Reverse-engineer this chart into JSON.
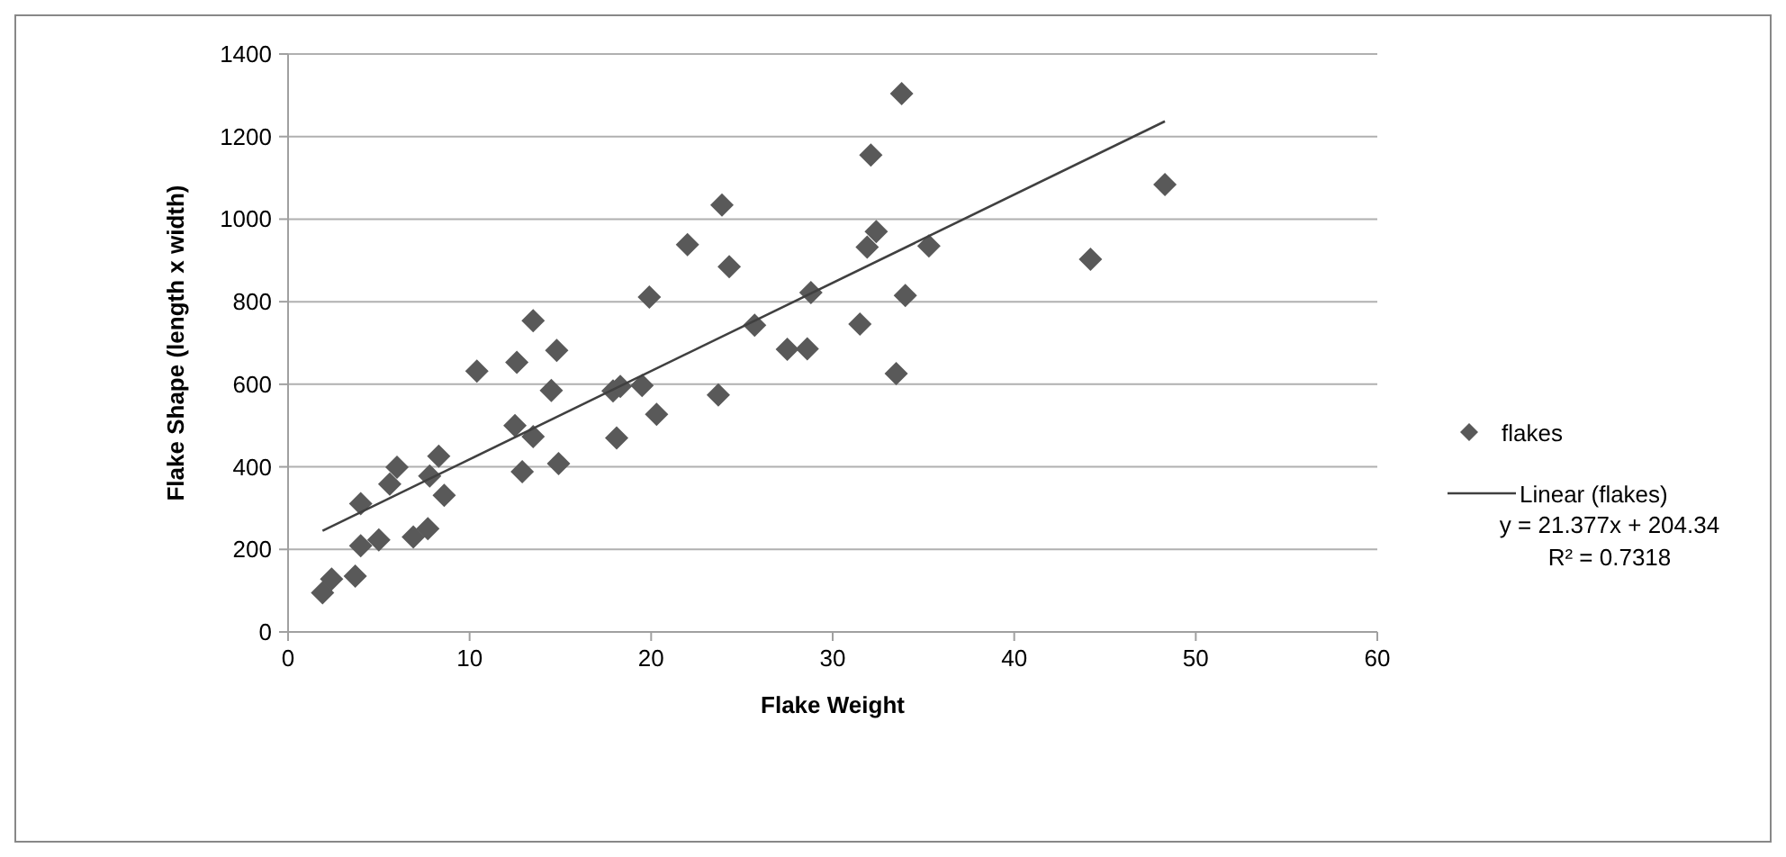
{
  "chart_data": {
    "type": "scatter",
    "xlabel": "Flake Weight",
    "ylabel": "Flake Shape (length x width)",
    "xlim": [
      0,
      60
    ],
    "xticks": [
      0,
      10,
      20,
      30,
      40,
      50,
      60
    ],
    "ylim": [
      0,
      1400
    ],
    "yticks": [
      0,
      200,
      400,
      600,
      800,
      1000,
      1200,
      1400
    ],
    "grid": "y",
    "legend": "right",
    "annotations": [
      "y = 21.377x + 204.34",
      "R² = 0.7318"
    ],
    "series": [
      {
        "name": "flakes",
        "color": "#595959",
        "marker": "diamond",
        "x": [
          1.9,
          2.4,
          3.7,
          4.0,
          4.0,
          5.0,
          5.6,
          6.0,
          6.9,
          7.7,
          7.8,
          8.3,
          8.6,
          10.4,
          12.5,
          12.6,
          12.9,
          13.5,
          13.5,
          14.5,
          14.8,
          14.9,
          18.1,
          17.9,
          18.3,
          19.5,
          19.9,
          20.3,
          22.0,
          23.7,
          23.9,
          24.3,
          25.7,
          27.5,
          28.6,
          28.8,
          33.8,
          32.1,
          32.4,
          31.9,
          35.3,
          44.2,
          48.3,
          34.0,
          31.5,
          33.5
        ],
        "values": [
          95,
          128,
          135,
          209,
          311,
          223,
          358,
          399,
          230,
          250,
          378,
          426,
          331,
          632,
          500,
          653,
          388,
          473,
          754,
          585,
          682,
          408,
          470,
          584,
          595,
          597,
          811,
          527,
          938,
          574,
          1034,
          885,
          743,
          685,
          686,
          822,
          1304,
          1155,
          970,
          932,
          935,
          903,
          1084,
          815,
          746,
          626
        ]
      },
      {
        "name": "Linear (flakes)",
        "color": "#404040",
        "type": "line",
        "marker": "none",
        "line_style": "solid",
        "x": [
          1.9,
          48.3
        ],
        "values": [
          245,
          1237
        ]
      }
    ]
  }
}
